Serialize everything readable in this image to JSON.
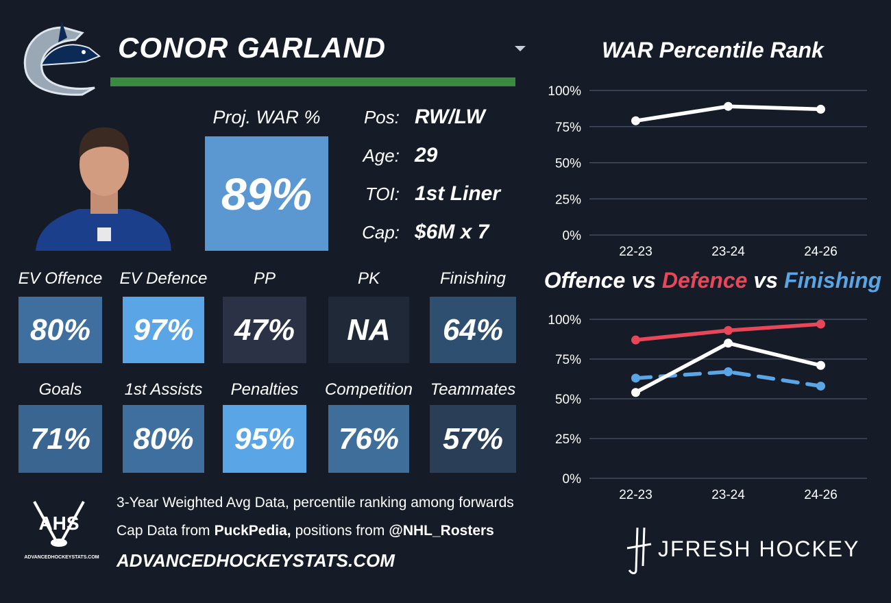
{
  "header": {
    "name": "CONOR GARLAND"
  },
  "projection": {
    "label": "Proj. WAR %",
    "value": "89%",
    "color": "#5b98d2"
  },
  "bio": [
    {
      "label": "Pos:",
      "value": "RW/LW"
    },
    {
      "label": "Age:",
      "value": "29"
    },
    {
      "label": "TOI:",
      "value": "1st Liner"
    },
    {
      "label": "Cap:",
      "value": "$6M x 7"
    }
  ],
  "tiles": [
    {
      "label": "EV Offence",
      "value": "80%",
      "color": "#3f6f9f"
    },
    {
      "label": "EV Defence",
      "value": "97%",
      "color": "#5aa5e6"
    },
    {
      "label": "PP",
      "value": "47%",
      "color": "#2c3246"
    },
    {
      "label": "PK",
      "value": "NA",
      "color": "#1f2937"
    },
    {
      "label": "Finishing",
      "value": "64%",
      "color": "#2f4f70"
    },
    {
      "label": "Goals",
      "value": "71%",
      "color": "#3a6590"
    },
    {
      "label": "1st Assists",
      "value": "80%",
      "color": "#3f6f9f"
    },
    {
      "label": "Penalties",
      "value": "95%",
      "color": "#5aa5e6"
    },
    {
      "label": "Competition",
      "value": "76%",
      "color": "#3f6e9b"
    },
    {
      "label": "Teammates",
      "value": "57%",
      "color": "#2a3e58"
    }
  ],
  "footer": {
    "note": "3-Year Weighted Avg Data, percentile ranking among forwards",
    "sources": [
      {
        "text": "Cap Data from",
        "bold": false
      },
      {
        "text": "PuckPedia,",
        "bold": true
      },
      {
        "text": "positions from",
        "bold": false
      },
      {
        "text": "@NHL_Rosters",
        "bold": true
      }
    ],
    "site": "ADVANCEDHOCKEYSTATS.COM"
  },
  "logos": {
    "ahs": "AHS",
    "ahs_site": "ADVANCEDHOCKEYSTATS.COM",
    "jfresh": "JFRESH HOCKEY"
  },
  "chart_data": [
    {
      "type": "line",
      "title": "WAR Percentile Rank",
      "categories": [
        "22-23",
        "23-24",
        "24-26"
      ],
      "series": [
        {
          "name": "WAR",
          "color": "#ffffff",
          "dashed": false,
          "values": [
            79,
            89,
            87
          ]
        }
      ],
      "ylim": [
        0,
        100
      ],
      "yticks": [
        {
          "value": 0,
          "label": "0%"
        },
        {
          "value": 25,
          "label": "25%"
        },
        {
          "value": 50,
          "label": "50%"
        },
        {
          "value": 75,
          "label": "75%"
        },
        {
          "value": 100,
          "label": "100%"
        }
      ],
      "grid": true
    },
    {
      "type": "line",
      "title": [
        "Offence",
        "vs",
        "Defence",
        "vs",
        "Finishing"
      ],
      "title_colors": [
        "#ffffff",
        "#ffffff",
        "#e8475a",
        "#ffffff",
        "#5aa5e6"
      ],
      "categories": [
        "22-23",
        "23-24",
        "24-26"
      ],
      "series": [
        {
          "name": "Defence",
          "color": "#e8475a",
          "dashed": false,
          "values": [
            87,
            93,
            97
          ]
        },
        {
          "name": "Finishing",
          "color": "#5aa5e6",
          "dashed": true,
          "values": [
            63,
            67,
            58
          ]
        },
        {
          "name": "Offence",
          "color": "#ffffff",
          "dashed": false,
          "values": [
            54,
            85,
            71
          ]
        }
      ],
      "ylim": [
        0,
        100
      ],
      "yticks": [
        {
          "value": 0,
          "label": "0%"
        },
        {
          "value": 25,
          "label": "25%"
        },
        {
          "value": 50,
          "label": "50%"
        },
        {
          "value": 75,
          "label": "75%"
        },
        {
          "value": 100,
          "label": "100%"
        }
      ],
      "grid": true
    }
  ]
}
